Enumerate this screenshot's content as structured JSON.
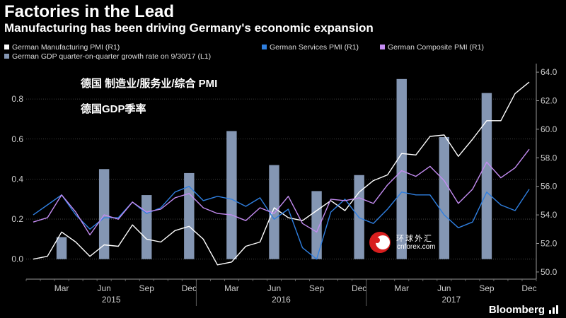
{
  "title": "Factories in the Lead",
  "subtitle": "Manufacturing has been driving Germany's economic expansion",
  "annotations": [
    "德国 制造业/服务业/综合 PMI",
    "德国GDP季率"
  ],
  "watermark": {
    "cn": "环球外汇",
    "en": "cnforex.com"
  },
  "brand": "Bloomberg",
  "colors": {
    "background": "#000000",
    "bars": "#8496b3",
    "manufacturing": "#ffffff",
    "services": "#2f7fe0",
    "composite": "#c48cf2",
    "grid": "#555555",
    "axis_text": "#cccccc"
  },
  "chart_data": {
    "type": "bar+line",
    "legend": [
      {
        "label": "German Manufacturing PMI (R1)",
        "color": "#ffffff"
      },
      {
        "label": "German Services PMI (R1)",
        "color": "#2f7fe0"
      },
      {
        "label": "German Composite PMI (R1)",
        "color": "#c48cf2"
      },
      {
        "label": "German GDP quarter-on-quarter growth rate on 9/30/17 (L1)",
        "color": "#8496b3"
      }
    ],
    "x_tick_labels": [
      "Mar",
      "Jun",
      "Sep",
      "Dec",
      "Mar",
      "Jun",
      "Sep",
      "Dec",
      "Mar",
      "Jun",
      "Sep",
      "Dec"
    ],
    "x_year_labels": [
      "2015",
      "2016",
      "2017"
    ],
    "left_axis": {
      "ticks": [
        0.0,
        0.2,
        0.4,
        0.6,
        0.8
      ],
      "tick_labels": [
        "0.0",
        "0.2",
        "0.4",
        "0.6",
        "0.8"
      ],
      "range": [
        -0.1,
        0.97
      ]
    },
    "right_axis": {
      "ticks": [
        50,
        52,
        54,
        56,
        58,
        60,
        62,
        64
      ],
      "tick_labels": [
        "50.0",
        "52.0",
        "54.0",
        "56.0",
        "58.0",
        "60.0",
        "62.0",
        "64.0"
      ],
      "range": [
        49.5,
        64.5
      ]
    },
    "months": [
      "2015-01",
      "2015-02",
      "2015-03",
      "2015-04",
      "2015-05",
      "2015-06",
      "2015-07",
      "2015-08",
      "2015-09",
      "2015-10",
      "2015-11",
      "2015-12",
      "2016-01",
      "2016-02",
      "2016-03",
      "2016-04",
      "2016-05",
      "2016-06",
      "2016-07",
      "2016-08",
      "2016-09",
      "2016-10",
      "2016-11",
      "2016-12",
      "2017-01",
      "2017-02",
      "2017-03",
      "2017-04",
      "2017-05",
      "2017-06",
      "2017-07",
      "2017-08",
      "2017-09",
      "2017-10",
      "2017-11",
      "2017-12"
    ],
    "gdp_bars": [
      {
        "quarter": "2015-03",
        "value": 0.11
      },
      {
        "quarter": "2015-06",
        "value": 0.45
      },
      {
        "quarter": "2015-09",
        "value": 0.32
      },
      {
        "quarter": "2015-12",
        "value": 0.43
      },
      {
        "quarter": "2016-03",
        "value": 0.64
      },
      {
        "quarter": "2016-06",
        "value": 0.47
      },
      {
        "quarter": "2016-09",
        "value": 0.34
      },
      {
        "quarter": "2016-12",
        "value": 0.42
      },
      {
        "quarter": "2017-03",
        "value": 0.9
      },
      {
        "quarter": "2017-06",
        "value": 0.61
      },
      {
        "quarter": "2017-09",
        "value": 0.83
      }
    ],
    "series": [
      {
        "name": "German Manufacturing PMI",
        "axis": "R1",
        "values": [
          50.9,
          51.1,
          52.8,
          52.1,
          51.1,
          51.9,
          51.8,
          53.3,
          52.3,
          52.1,
          52.9,
          53.2,
          52.3,
          50.5,
          50.7,
          51.8,
          52.1,
          54.5,
          53.8,
          53.6,
          54.3,
          55.0,
          54.3,
          55.6,
          56.4,
          56.8,
          58.3,
          58.2,
          59.5,
          59.6,
          58.1,
          59.3,
          60.6,
          60.6,
          62.5,
          63.3
        ]
      },
      {
        "name": "German Services PMI",
        "axis": "R1",
        "values": [
          54.0,
          54.7,
          55.4,
          54.0,
          53.0,
          53.8,
          53.8,
          54.9,
          54.1,
          54.5,
          55.6,
          56.0,
          55.0,
          55.3,
          55.1,
          54.6,
          55.2,
          53.7,
          54.4,
          51.7,
          50.9,
          54.2,
          55.1,
          53.8,
          53.4,
          54.4,
          55.6,
          55.4,
          55.4,
          54.0,
          53.1,
          53.5,
          55.6,
          54.7,
          54.3,
          55.8
        ]
      },
      {
        "name": "German Composite PMI",
        "axis": "R1",
        "values": [
          53.5,
          53.8,
          55.4,
          54.2,
          52.6,
          54.0,
          53.7,
          54.9,
          54.2,
          54.4,
          55.2,
          55.5,
          54.5,
          54.1,
          54.0,
          53.6,
          54.5,
          54.1,
          55.3,
          53.4,
          52.8,
          55.1,
          55.0,
          55.2,
          54.8,
          56.1,
          57.1,
          56.7,
          57.4,
          56.4,
          54.8,
          55.8,
          57.7,
          56.6,
          57.3,
          58.6
        ]
      }
    ]
  }
}
